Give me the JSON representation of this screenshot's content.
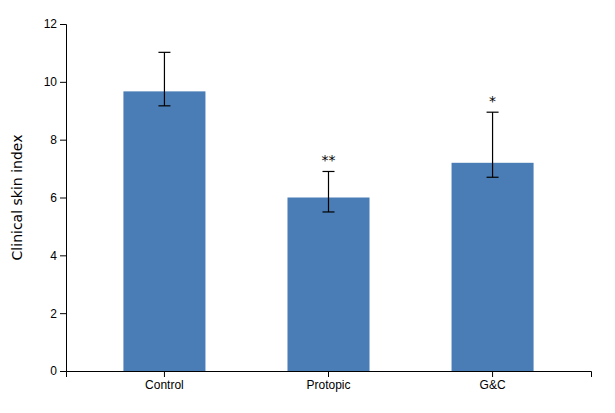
{
  "chart_data": {
    "type": "bar",
    "categories": [
      "Control",
      "Protopic",
      "G&C"
    ],
    "values": [
      9.67,
      6.0,
      7.2
    ],
    "error_upper": [
      1.35,
      0.9,
      1.75
    ],
    "error_lower": [
      0.5,
      0.5,
      0.5
    ],
    "significance": [
      null,
      "**",
      "*"
    ],
    "color": "#4A7DB5",
    "ylabel": "Clinical skin index",
    "ylim": [
      0,
      12
    ],
    "yticks": [
      0,
      2,
      4,
      6,
      8,
      10,
      12
    ],
    "grid": false
  }
}
